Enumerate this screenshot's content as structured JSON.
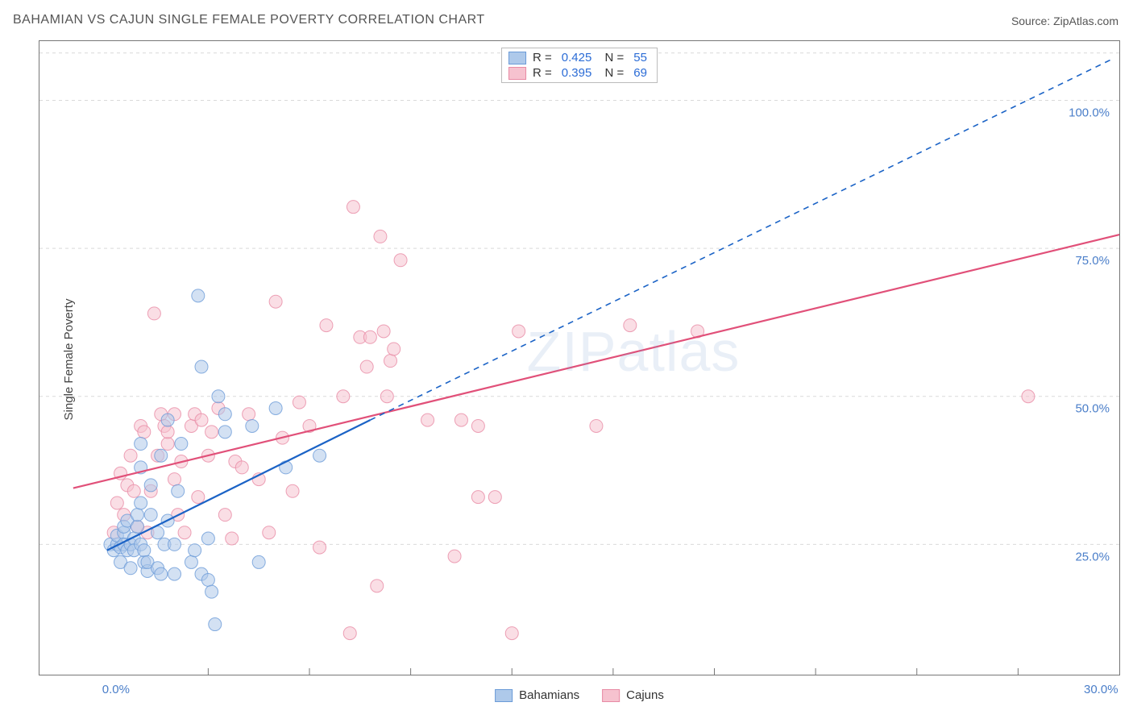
{
  "title": "BAHAMIAN VS CAJUN SINGLE FEMALE POVERTY CORRELATION CHART",
  "source": "Source: ZipAtlas.com",
  "ylabel": "Single Female Poverty",
  "watermark": {
    "bold": "ZIP",
    "thin": "atlas"
  },
  "colors": {
    "blue_fill": "#aec9ea",
    "blue_stroke": "#6b9bd8",
    "blue_line": "#1b63c6",
    "pink_fill": "#f6c2cf",
    "pink_stroke": "#e88ba5",
    "pink_line": "#e15079",
    "grid": "#d9d9d9",
    "axis": "#777777",
    "tick_text": "#4a7ec9"
  },
  "chart": {
    "type": "scatter",
    "xlim": [
      -2,
      30
    ],
    "ylim": [
      3,
      110
    ],
    "xticks": [
      0,
      30
    ],
    "xtick_labels": [
      "0.0%",
      "30.0%"
    ],
    "yticks": [
      25,
      50,
      75,
      100
    ],
    "ytick_labels": [
      "25.0%",
      "50.0%",
      "75.0%",
      "100.0%"
    ],
    "x_minor_ticks": [
      3,
      6,
      9,
      12,
      15,
      18,
      21,
      24,
      27
    ],
    "marker_radius": 8,
    "marker_opacity": 0.55,
    "line_width_solid": 2.2,
    "line_width_dash": 1.6
  },
  "stats_legend": [
    {
      "swatch": "blue",
      "R": "0.425",
      "N": "55"
    },
    {
      "swatch": "pink",
      "R": "0.395",
      "N": "69"
    }
  ],
  "series_legend": [
    {
      "swatch": "blue",
      "label": "Bahamians"
    },
    {
      "swatch": "pink",
      "label": "Cajuns"
    }
  ],
  "series": {
    "bahamians": {
      "points": [
        [
          0.1,
          25
        ],
        [
          0.2,
          24
        ],
        [
          0.3,
          25
        ],
        [
          0.3,
          26.5
        ],
        [
          0.4,
          24.5
        ],
        [
          0.4,
          22
        ],
        [
          0.5,
          27
        ],
        [
          0.5,
          28
        ],
        [
          0.5,
          25
        ],
        [
          0.6,
          24
        ],
        [
          0.6,
          29
        ],
        [
          0.7,
          25
        ],
        [
          0.7,
          21
        ],
        [
          0.8,
          26
        ],
        [
          0.8,
          24
        ],
        [
          0.9,
          28
        ],
        [
          0.9,
          30
        ],
        [
          1.0,
          25
        ],
        [
          1.0,
          32
        ],
        [
          1.0,
          38
        ],
        [
          1.0,
          42
        ],
        [
          1.1,
          22
        ],
        [
          1.1,
          24
        ],
        [
          1.2,
          20.5
        ],
        [
          1.2,
          22
        ],
        [
          1.3,
          30
        ],
        [
          1.3,
          35
        ],
        [
          1.5,
          27
        ],
        [
          1.5,
          21
        ],
        [
          1.6,
          20
        ],
        [
          1.6,
          40
        ],
        [
          1.7,
          25
        ],
        [
          1.8,
          29
        ],
        [
          1.8,
          46
        ],
        [
          2.0,
          20
        ],
        [
          2.0,
          25
        ],
        [
          2.1,
          34
        ],
        [
          2.2,
          42
        ],
        [
          2.5,
          22
        ],
        [
          2.6,
          24
        ],
        [
          2.7,
          67
        ],
        [
          2.8,
          20
        ],
        [
          2.8,
          55
        ],
        [
          3.0,
          19
        ],
        [
          3.0,
          26
        ],
        [
          3.1,
          17
        ],
        [
          3.3,
          50
        ],
        [
          3.5,
          44
        ],
        [
          3.5,
          47
        ],
        [
          4.3,
          45
        ],
        [
          4.5,
          22
        ],
        [
          5.0,
          48
        ],
        [
          5.3,
          38
        ],
        [
          3.2,
          11.5
        ],
        [
          6.3,
          40
        ]
      ],
      "solid_line": {
        "from": [
          0,
          24
        ],
        "to": [
          7.8,
          46
        ]
      },
      "dashed_line": {
        "from": [
          7.8,
          46
        ],
        "to": [
          29.8,
          107
        ]
      }
    },
    "cajuns": {
      "points": [
        [
          0.2,
          27
        ],
        [
          0.3,
          32
        ],
        [
          0.4,
          37
        ],
        [
          0.5,
          30
        ],
        [
          0.6,
          35
        ],
        [
          0.7,
          40
        ],
        [
          0.8,
          34
        ],
        [
          0.9,
          28
        ],
        [
          1.0,
          45
        ],
        [
          1.1,
          44
        ],
        [
          1.2,
          27
        ],
        [
          1.3,
          34
        ],
        [
          1.4,
          64
        ],
        [
          1.5,
          40
        ],
        [
          1.6,
          47
        ],
        [
          1.7,
          45
        ],
        [
          1.8,
          42
        ],
        [
          1.8,
          44
        ],
        [
          2.0,
          36
        ],
        [
          2.0,
          47
        ],
        [
          2.1,
          30
        ],
        [
          2.2,
          39
        ],
        [
          2.3,
          27
        ],
        [
          2.5,
          45
        ],
        [
          2.6,
          47
        ],
        [
          2.7,
          33
        ],
        [
          2.8,
          46
        ],
        [
          3.0,
          40
        ],
        [
          3.1,
          44
        ],
        [
          3.3,
          48
        ],
        [
          3.5,
          30
        ],
        [
          3.7,
          26
        ],
        [
          3.8,
          39
        ],
        [
          4.0,
          38
        ],
        [
          4.2,
          47
        ],
        [
          4.5,
          36
        ],
        [
          4.8,
          27
        ],
        [
          5.0,
          66
        ],
        [
          5.2,
          43
        ],
        [
          5.5,
          34
        ],
        [
          5.7,
          49
        ],
        [
          6.0,
          45
        ],
        [
          6.3,
          24.5
        ],
        [
          6.5,
          62
        ],
        [
          7.0,
          50
        ],
        [
          7.2,
          10
        ],
        [
          7.3,
          82
        ],
        [
          7.5,
          60
        ],
        [
          7.7,
          55
        ],
        [
          7.8,
          60
        ],
        [
          8.0,
          18
        ],
        [
          8.1,
          77
        ],
        [
          8.2,
          61
        ],
        [
          8.3,
          50
        ],
        [
          8.4,
          56
        ],
        [
          8.5,
          58
        ],
        [
          8.7,
          73
        ],
        [
          9.5,
          46
        ],
        [
          10.3,
          23
        ],
        [
          10.5,
          46
        ],
        [
          11.0,
          33
        ],
        [
          11.0,
          45
        ],
        [
          11.5,
          33
        ],
        [
          12.0,
          10
        ],
        [
          12.2,
          61
        ],
        [
          14.5,
          45
        ],
        [
          15.5,
          62
        ],
        [
          17.5,
          61
        ],
        [
          27.3,
          50
        ]
      ],
      "solid_line": {
        "from": [
          -1,
          34.5
        ],
        "to": [
          30.5,
          78
        ]
      }
    }
  }
}
